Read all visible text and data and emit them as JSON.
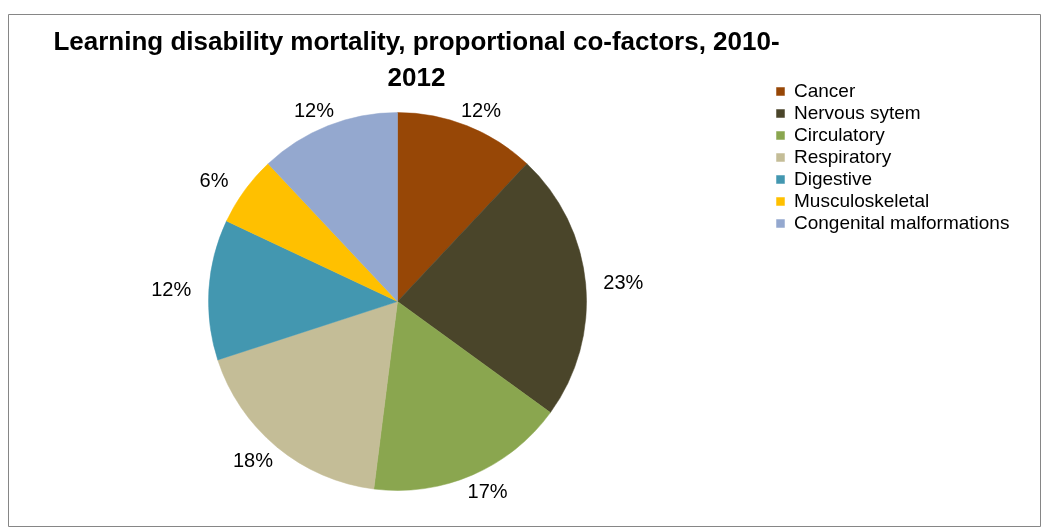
{
  "chart_data": {
    "type": "pie",
    "title": "Learning disability mortality, proportional co-factors, 2010-2012",
    "categories": [
      "Cancer",
      "Nervous sytem",
      "Circulatory",
      "Respiratory",
      "Digestive",
      "Musculoskeletal",
      "Congenital malformations"
    ],
    "values": [
      12,
      23,
      17,
      18,
      12,
      6,
      12
    ],
    "colors": [
      "#974706",
      "#4a452a",
      "#8aa64f",
      "#c4bd97",
      "#4397b0",
      "#ffc000",
      "#94a8cf"
    ],
    "value_labels": [
      "12%",
      "23%",
      "17%",
      "18%",
      "12%",
      "6%",
      "12%"
    ],
    "legend": "top right"
  }
}
